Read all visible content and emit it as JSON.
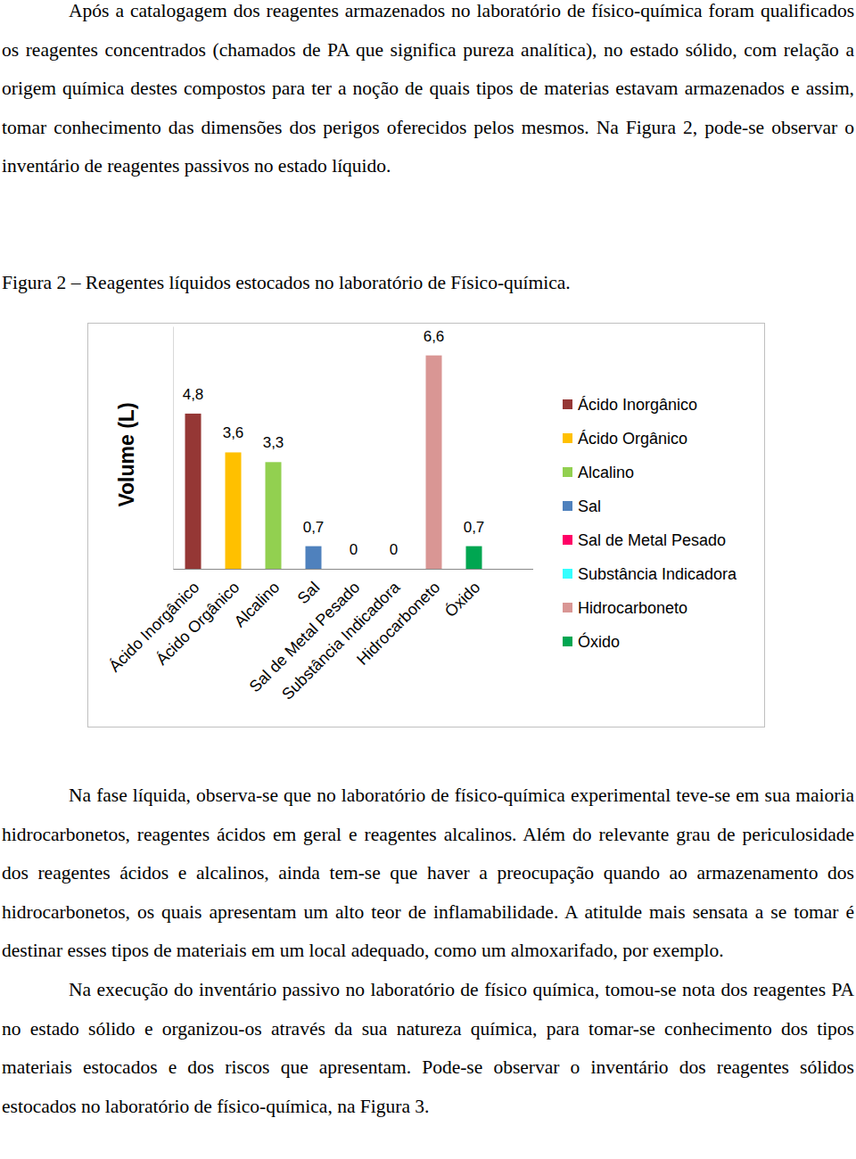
{
  "document": {
    "paragraphs_before": [
      "Após a catalogagem dos reagentes armazenados no laboratório de físico-química foram qualificados os reagentes concentrados (chamados de PA que significa pureza analítica), no estado sólido, com relação a origem química destes compostos para ter a noção de quais tipos de materias estavam armazenados e assim, tomar conhecimento das dimensões dos perigos oferecidos pelos mesmos. Na Figura 2, pode-se observar o inventário de reagentes passivos no estado líquido."
    ],
    "caption": "Figura 2 – Reagentes líquidos estocados no laboratório de Físico-química.",
    "paragraphs_after": [
      "Na fase líquida, observa-se que no laboratório de físico-química experimental teve-se em sua maioria hidrocarbonetos, reagentes ácidos em geral e reagentes alcalinos. Além do relevante grau de periculosidade dos reagentes ácidos e alcalinos, ainda tem-se que haver a preocupação quando ao armazenamento dos hidrocarbonetos, os quais apresentam um alto teor de inflamabilidade. A atitulde mais sensata a se tomar é destinar esses tipos de materiais em um local adequado, como um almoxarifado, por exemplo.",
      "Na execução do inventário passivo no laboratório de físico química, tomou-se nota dos reagentes PA no estado sólido e organizou-os através da sua natureza química, para tomar-se conhecimento dos tipos materiais estocados e dos riscos que apresentam. Pode-se observar o inventário dos reagentes sólidos estocados no laboratório de físico-química, na Figura 3."
    ]
  },
  "chart_data": {
    "type": "bar",
    "y_label": "Volume (L)",
    "categories": [
      "Ácido Inorgânico",
      "Ácido Orgânico",
      "Alcalino",
      "Sal",
      "Sal de Metal Pesado",
      "Substância Indicadora",
      "Hidrocarboneto",
      "Óxido"
    ],
    "values": [
      4.8,
      3.6,
      3.3,
      0.7,
      0,
      0,
      6.6,
      0.7
    ],
    "value_labels": [
      "4,8",
      "3,6",
      "3,3",
      "0,7",
      "0",
      "0",
      "6,6",
      "0,7"
    ],
    "colors": [
      "#953735",
      "#FFC000",
      "#92D050",
      "#4F81BD",
      "#FF0066",
      "#33FFFF",
      "#D99694",
      "#00A651"
    ],
    "ylim": [
      0,
      7.5
    ],
    "data_labels": true,
    "tick_labels": "x",
    "legend": "right"
  }
}
